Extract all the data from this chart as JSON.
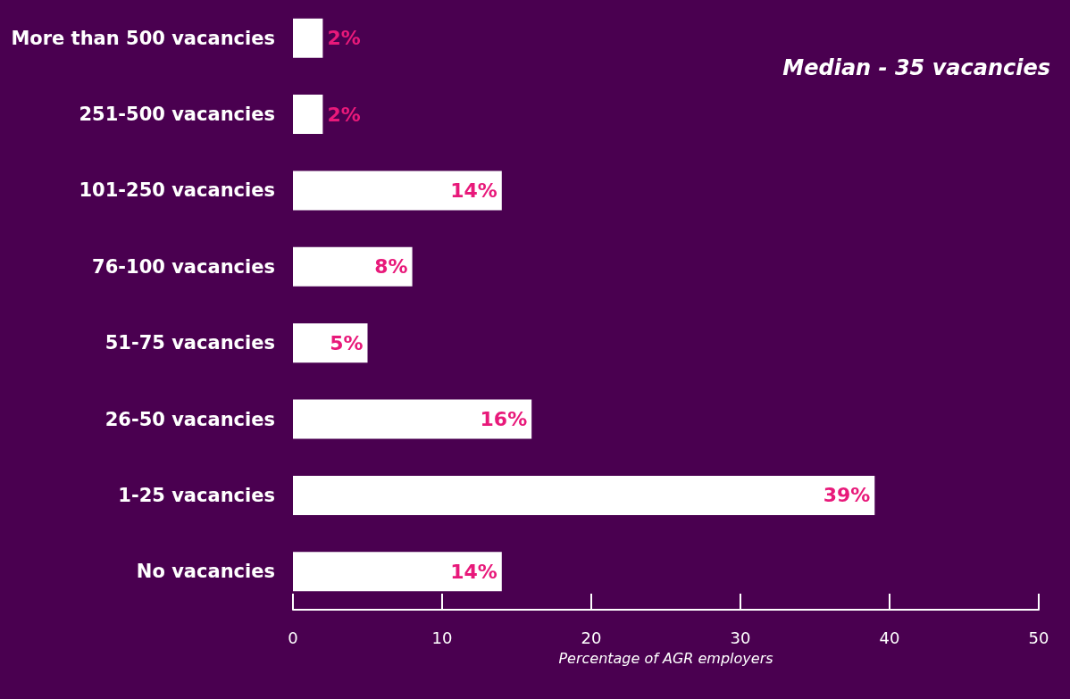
{
  "chart_data": {
    "type": "bar",
    "orientation": "horizontal",
    "xlabel": "Percentage of AGR employers",
    "categories": [
      "More than 500 vacancies",
      "251-500 vacancies",
      "101-250 vacancies",
      "76-100 vacancies",
      "51-75 vacancies",
      "26-50 vacancies",
      "1-25 vacancies",
      "No vacancies"
    ],
    "values": [
      2,
      2,
      14,
      8,
      5,
      16,
      39,
      14
    ],
    "value_labels": [
      "2%",
      "2%",
      "14%",
      "8%",
      "5%",
      "16%",
      "39%",
      "14%"
    ],
    "color": "#ffffff",
    "xlim": [
      0,
      50
    ],
    "xticks": [
      0,
      10,
      20,
      30,
      40,
      50
    ],
    "grid": false,
    "annotations": [
      "Median - 35 vacancies"
    ]
  }
}
